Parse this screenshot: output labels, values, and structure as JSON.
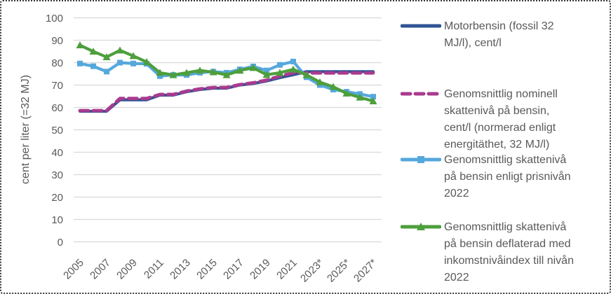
{
  "figure": {
    "background": "#ffffff",
    "border_color": "#3a3a3a",
    "axis_text_color": "#595959",
    "gridline_color": "#d9d9d9"
  },
  "chart_data": {
    "type": "line",
    "title": "",
    "xlabel": "",
    "ylabel": "cent per liter (=32 MJ)",
    "ylim": [
      0,
      100
    ],
    "ytick_step": 10,
    "ytick_labels": [
      "0",
      "10",
      "20",
      "30",
      "40",
      "50",
      "60",
      "70",
      "80",
      "90",
      "100"
    ],
    "grid": "horizontal-only",
    "legend_position": "right",
    "x": [
      2005,
      2006,
      2007,
      2008,
      2009,
      2010,
      2011,
      2012,
      2013,
      2014,
      2015,
      2016,
      2017,
      2018,
      2019,
      2020,
      2021,
      2022,
      2023,
      2024,
      2025,
      2026,
      2027
    ],
    "xtick_labels": [
      "2005",
      "2007",
      "2009",
      "2011",
      "2013",
      "2015",
      "2017",
      "2019",
      "2021",
      "2023*",
      "2025*",
      "2027*"
    ],
    "series": [
      {
        "name": "Motorbensin (fossil 32 MJ/l), cent/l",
        "color": "#2e5394",
        "style": "solid",
        "marker": "none",
        "values": [
          58.3,
          58.3,
          58.3,
          63.4,
          63.4,
          63.4,
          65.5,
          65.5,
          67.0,
          68.0,
          68.6,
          68.6,
          70.0,
          70.7,
          71.8,
          73.3,
          74.6,
          76.0,
          76.0,
          76.0,
          76.0,
          76.0,
          76.0
        ]
      },
      {
        "name": "Genomsnittlig nominell skattenivå på bensin, cent/l (normerad enligt energitäthet, 32 MJ/l)",
        "color": "#a93b8f",
        "style": "dashed",
        "marker": "none",
        "values": [
          58.6,
          58.6,
          58.6,
          64.0,
          64.0,
          64.0,
          65.8,
          65.8,
          67.3,
          68.3,
          68.9,
          68.9,
          70.2,
          71.0,
          72.2,
          74.0,
          75.5,
          75.4,
          75.4,
          75.4,
          75.4,
          75.4,
          75.4
        ]
      },
      {
        "name": "Genomsnittlig skattenivå på bensin enligt prisnivån 2022",
        "color": "#56a8dc",
        "style": "solid",
        "marker": "square",
        "values": [
          79.6,
          78.4,
          76.0,
          80.0,
          79.6,
          79.5,
          74.0,
          74.5,
          74.5,
          75.5,
          76.0,
          75.5,
          77.0,
          78.3,
          76.5,
          79.0,
          80.5,
          73.5,
          70.0,
          68.0,
          67.0,
          66.0,
          64.8
        ]
      },
      {
        "name": "Genomsnittlig skattenivå på bensin deflaterad med inkomstnivåindex till nivån 2022",
        "color": "#4d9f3c",
        "style": "solid",
        "marker": "triangle",
        "values": [
          87.8,
          85.0,
          82.5,
          85.5,
          83.0,
          80.3,
          75.5,
          74.5,
          75.5,
          76.5,
          75.8,
          74.5,
          76.5,
          77.7,
          74.6,
          75.5,
          77.0,
          74.5,
          71.3,
          69.2,
          66.3,
          64.5,
          62.8
        ]
      }
    ]
  },
  "legend": {
    "items": [
      {
        "lines": [
          "Motorbensin (fossil 32",
          "MJ/l), cent/l"
        ]
      },
      {
        "lines": [
          "Genomsnittlig nominell",
          "skattenivå på bensin,",
          "cent/l (normerad enligt",
          "energitäthet, 32 MJ/l)"
        ]
      },
      {
        "lines": [
          "Genomsnittlig skattenivå",
          "på bensin enligt prisnivån",
          "2022"
        ]
      },
      {
        "lines": [
          "Genomsnittlig skattenivå",
          "på bensin deflaterad med",
          "inkomstnivåindex till nivån",
          "2022"
        ]
      }
    ]
  }
}
